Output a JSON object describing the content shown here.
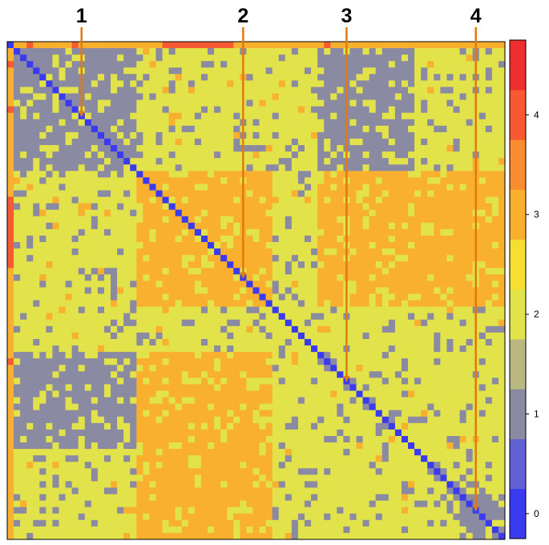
{
  "chart_data": {
    "type": "heatmap",
    "title": "",
    "xlabel": "",
    "ylabel": "",
    "matrix_size": 77,
    "grid": false,
    "diagonal_value": 0,
    "colorbar": {
      "ticks": [
        "0",
        "1",
        "2",
        "3",
        "4"
      ],
      "range": [
        -0.25,
        4.75
      ],
      "placement": "right",
      "levels": [
        {
          "from": -0.25,
          "to": 0.25,
          "color": "#3a3af0"
        },
        {
          "from": 0.25,
          "to": 0.75,
          "color": "#6262d4"
        },
        {
          "from": 0.75,
          "to": 1.25,
          "color": "#8a8aa2"
        },
        {
          "from": 1.25,
          "to": 1.75,
          "color": "#b8b880"
        },
        {
          "from": 1.75,
          "to": 2.25,
          "color": "#e2e24a"
        },
        {
          "from": 2.25,
          "to": 2.75,
          "color": "#f6df30"
        },
        {
          "from": 2.75,
          "to": 3.25,
          "color": "#f8b02e"
        },
        {
          "from": 3.25,
          "to": 3.75,
          "color": "#f88c30"
        },
        {
          "from": 3.75,
          "to": 4.25,
          "color": "#f55a32"
        },
        {
          "from": 4.25,
          "to": 4.75,
          "color": "#f02e2e"
        }
      ]
    },
    "value_colors": {
      "0": "#3a3af0",
      "1": "#8a8aa2",
      "2": "#e2e24a",
      "3": "#f8b02e",
      "4": "#f55a32"
    },
    "blocks": [
      {
        "rows": [
          1,
          19
        ],
        "cols": [
          1,
          19
        ],
        "value": 1
      },
      {
        "rows": [
          20,
          40
        ],
        "cols": [
          20,
          40
        ],
        "value": 3
      },
      {
        "rows": [
          20,
          40
        ],
        "cols": [
          48,
          76
        ],
        "value": 3
      },
      {
        "rows": [
          48,
          76
        ],
        "cols": [
          20,
          40
        ],
        "value": 3
      },
      {
        "rows": [
          1,
          19
        ],
        "cols": [
          48,
          62
        ],
        "value": 1
      },
      {
        "rows": [
          48,
          62
        ],
        "cols": [
          1,
          19
        ],
        "value": 1
      },
      {
        "rows": [
          70,
          76
        ],
        "cols": [
          70,
          76
        ],
        "value": 1
      }
    ],
    "default_value": 2,
    "edge_value": 3,
    "edge_hot_cells": [
      3,
      10,
      24,
      25,
      26,
      27,
      28,
      29,
      30,
      31,
      32,
      33,
      34,
      49
    ],
    "markers": [
      {
        "label": "1",
        "index": 11
      },
      {
        "label": "2",
        "index": 36
      },
      {
        "label": "3",
        "index": 52
      },
      {
        "label": "4",
        "index": 72
      }
    ]
  }
}
